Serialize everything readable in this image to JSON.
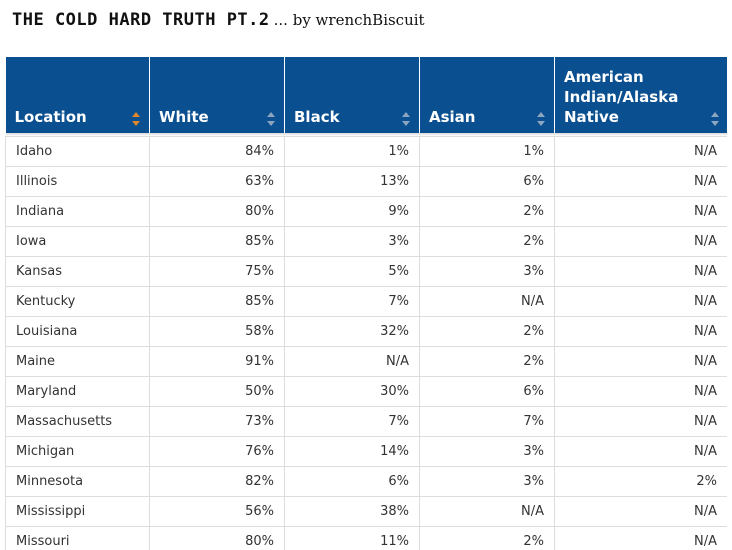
{
  "title": {
    "main": "THE COLD HARD TRUTH PT.2",
    "byline": "... by wrenchBiscuit"
  },
  "table": {
    "columns": [
      {
        "label": "Location",
        "sort_state": "active"
      },
      {
        "label": "White",
        "sort_state": "inactive"
      },
      {
        "label": "Black",
        "sort_state": "inactive"
      },
      {
        "label": "Asian",
        "sort_state": "inactive"
      },
      {
        "label": "American Indian/Alaska Native",
        "sort_state": "inactive"
      }
    ],
    "rows": [
      [
        "Idaho",
        "84%",
        "1%",
        "1%",
        "N/A"
      ],
      [
        "Illinois",
        "63%",
        "13%",
        "6%",
        "N/A"
      ],
      [
        "Indiana",
        "80%",
        "9%",
        "2%",
        "N/A"
      ],
      [
        "Iowa",
        "85%",
        "3%",
        "2%",
        "N/A"
      ],
      [
        "Kansas",
        "75%",
        "5%",
        "3%",
        "N/A"
      ],
      [
        "Kentucky",
        "85%",
        "7%",
        "N/A",
        "N/A"
      ],
      [
        "Louisiana",
        "58%",
        "32%",
        "2%",
        "N/A"
      ],
      [
        "Maine",
        "91%",
        "N/A",
        "2%",
        "N/A"
      ],
      [
        "Maryland",
        "50%",
        "30%",
        "6%",
        "N/A"
      ],
      [
        "Massachusetts",
        "73%",
        "7%",
        "7%",
        "N/A"
      ],
      [
        "Michigan",
        "76%",
        "14%",
        "3%",
        "N/A"
      ],
      [
        "Minnesota",
        "82%",
        "6%",
        "3%",
        "2%"
      ],
      [
        "Mississippi",
        "56%",
        "38%",
        "N/A",
        "N/A"
      ],
      [
        "Missouri",
        "80%",
        "11%",
        "2%",
        "N/A"
      ]
    ]
  },
  "colors": {
    "header_bg": "#0a4f8f",
    "header_text": "#ffffff",
    "sort_active": "#e0872e",
    "sort_inactive": "#8da6bf",
    "cell_border": "#dddddd"
  },
  "icons": {
    "sort": "sort-arrows-icon"
  }
}
